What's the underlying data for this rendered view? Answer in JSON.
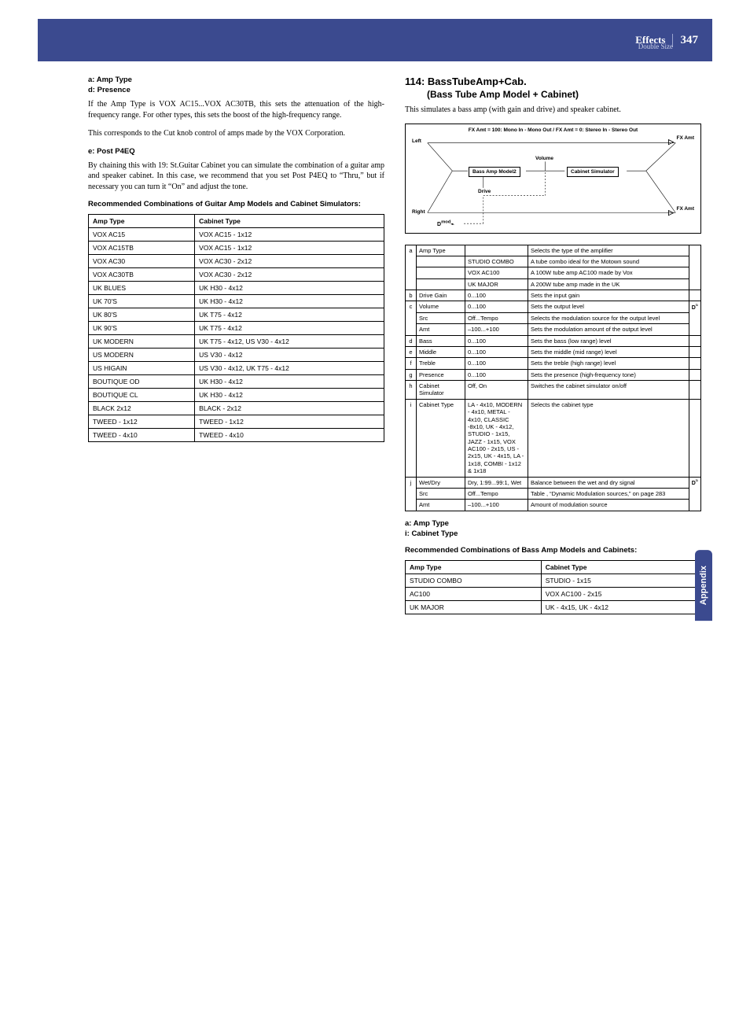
{
  "header": {
    "title": "Effects",
    "subtitle": "Double Size",
    "page": "347"
  },
  "left": {
    "labels": [
      "a: Amp Type",
      "d: Presence"
    ],
    "p1": "If the Amp Type is VOX AC15...VOX AC30TB, this sets the attenuation of the high-frequency range. For other types, this sets the boost of the high-frequency range.",
    "p2": "This corresponds to the Cut knob control of amps made by the VOX Corporation.",
    "label_e": "e: Post P4EQ",
    "p3": "By chaining this with 19: St.Guitar Cabinet you can simulate the combination of a guitar amp and speaker cabinet. In this case, we recommend that you set Post P4EQ to “Thru,” but if necessary you can turn it “On” and adjust the tone.",
    "rec_title": "Recommended Combinations of Guitar Amp Models and Cabinet Simulators:",
    "combo_headers": [
      "Amp Type",
      "Cabinet Type"
    ],
    "combos": [
      [
        "VOX AC15",
        "VOX AC15 - 1x12"
      ],
      [
        "VOX AC15TB",
        "VOX AC15 - 1x12"
      ],
      [
        "VOX AC30",
        "VOX AC30 - 2x12"
      ],
      [
        "VOX AC30TB",
        "VOX AC30 - 2x12"
      ],
      [
        "UK BLUES",
        "UK H30 - 4x12"
      ],
      [
        "UK 70'S",
        "UK H30 - 4x12"
      ],
      [
        "UK 80'S",
        "UK T75 - 4x12"
      ],
      [
        "UK 90'S",
        "UK T75 - 4x12"
      ],
      [
        "UK MODERN",
        "UK T75 - 4x12, US V30 - 4x12"
      ],
      [
        "US MODERN",
        "US V30 - 4x12"
      ],
      [
        "US HIGAIN",
        "US V30 - 4x12, UK T75 - 4x12"
      ],
      [
        "BOUTIQUE OD",
        "UK H30 - 4x12"
      ],
      [
        "BOUTIQUE CL",
        "UK H30 - 4x12"
      ],
      [
        "BLACK 2x12",
        "BLACK - 2x12"
      ],
      [
        "TWEED - 1x12",
        "TWEED - 1x12"
      ],
      [
        "TWEED - 4x10",
        "TWEED - 4x10"
      ]
    ]
  },
  "right": {
    "title": "114: BassTubeAmp+Cab.",
    "subtitle": "(Bass Tube Amp Model + Cabinet)",
    "desc": "This simulates a bass amp (with gain and drive) and speaker cabinet.",
    "diagram": {
      "banner": "FX Amt = 100: Mono In - Mono Out  /  FX Amt = 0: Stereo In - Stereo Out",
      "left": "Left",
      "right": "Right",
      "fxamt": "FX Amt",
      "volume": "Volume",
      "drive": "Drive",
      "box1": "Bass Amp Model2",
      "box2": "Cabinet Simulator",
      "dmod": "D-mod"
    },
    "params": [
      {
        "idx": "a",
        "rows": [
          [
            "Amp Type",
            "",
            "Selects the type of the amplifier"
          ],
          [
            "",
            "STUDIO COMBO",
            "A tube combo ideal for the Motown sound"
          ],
          [
            "",
            "VOX AC100",
            "A 100W tube amp AC100 made by Vox"
          ],
          [
            "",
            "UK MAJOR",
            "A 200W tube amp made in the UK"
          ]
        ]
      },
      {
        "idx": "b",
        "rows": [
          [
            "Drive Gain",
            "0...100",
            "Sets the input gain"
          ]
        ]
      },
      {
        "idx": "c",
        "rows": [
          [
            "Volume",
            "0...100",
            "Sets the output level"
          ],
          [
            "Src",
            "Off...Tempo",
            "Selects the modulation source for the output level"
          ],
          [
            "Amt",
            "–100...+100",
            "Sets the modulation amount of the output level"
          ]
        ],
        "dmod": true
      },
      {
        "idx": "d",
        "rows": [
          [
            "Bass",
            "0...100",
            "Sets the bass (low range) level"
          ]
        ]
      },
      {
        "idx": "e",
        "rows": [
          [
            "Middle",
            "0...100",
            "Sets the middle (mid range) level"
          ]
        ]
      },
      {
        "idx": "f",
        "rows": [
          [
            "Treble",
            "0...100",
            "Sets the treble (high range) level"
          ]
        ]
      },
      {
        "idx": "g",
        "rows": [
          [
            "Presence",
            "0...100",
            "Sets the presence (high-frequency tone)"
          ]
        ]
      },
      {
        "idx": "h",
        "rows": [
          [
            "Cabinet Simulator",
            "Off, On",
            "Switches the cabinet simulator on/off"
          ]
        ]
      },
      {
        "idx": "i",
        "rows": [
          [
            "Cabinet Type",
            "LA - 4x10, MODERN - 4x10, METAL - 4x10, CLASSIC -8x10, UK - 4x12, STUDIO - 1x15, JAZZ - 1x15, VOX AC100 - 2x15, US - 2x15, UK - 4x15, LA - 1x18, COMBI - 1x12 & 1x18",
            "Selects the cabinet type"
          ]
        ]
      },
      {
        "idx": "j",
        "rows": [
          [
            "Wet/Dry",
            "Dry, 1:99...99:1, Wet",
            "Balance between the wet and dry signal"
          ],
          [
            "Src",
            "Off...Tempo",
            "Table , “Dynamic Modulation sources,” on page 283"
          ],
          [
            "Amt",
            "–100...+100",
            "Amount of modulation source"
          ]
        ],
        "dmod": true
      }
    ],
    "post_labels": [
      "a: Amp Type",
      "i: Cabinet Type"
    ],
    "rec_title": "Recommended Combinations of Bass Amp Models and Cabinets:",
    "combo_headers": [
      "Amp Type",
      "Cabinet Type"
    ],
    "combos": [
      [
        "STUDIO COMBO",
        "STUDIO - 1x15"
      ],
      [
        "AC100",
        "VOX AC100 - 2x15"
      ],
      [
        "UK MAJOR",
        "UK - 4x15, UK - 4x12"
      ]
    ]
  },
  "tab": "Appendix"
}
